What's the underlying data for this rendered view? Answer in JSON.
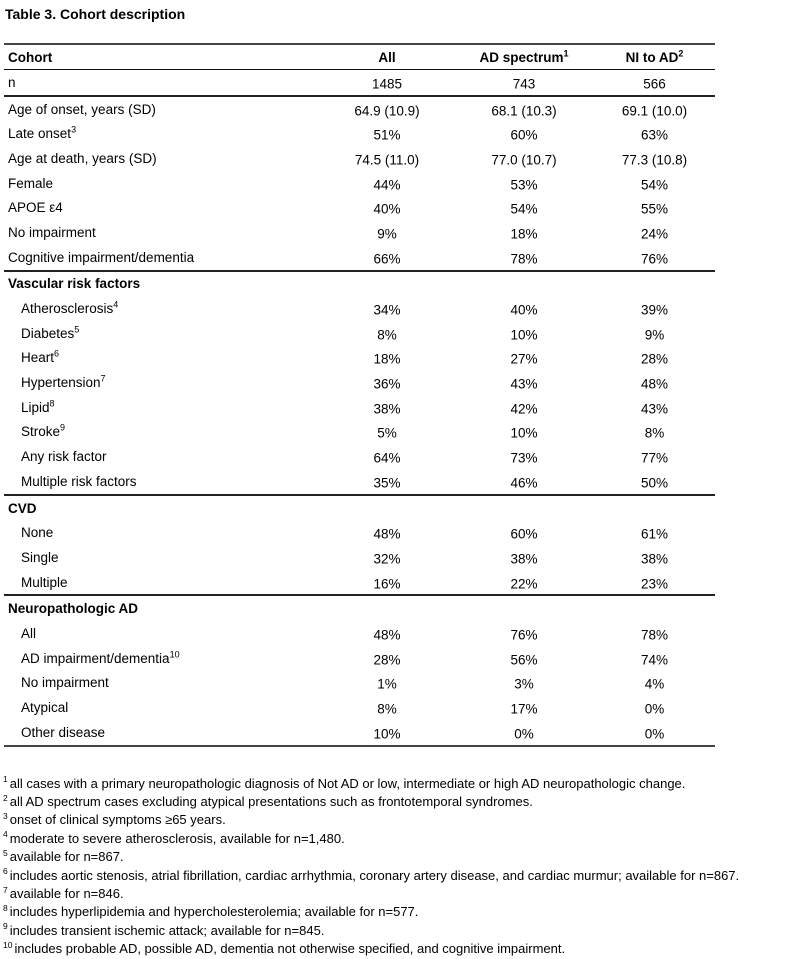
{
  "title": "Table 3. Cohort description",
  "colors": {
    "background": "#ffffff",
    "text": "#000000",
    "rule_heavy": "#454545",
    "rule_section": "#222222",
    "rule_header": "#111111"
  },
  "table": {
    "columns": [
      {
        "label": "Cohort",
        "sup": ""
      },
      {
        "label": "All",
        "sup": ""
      },
      {
        "label": "AD spectrum",
        "sup": "1"
      },
      {
        "label": "NI to AD",
        "sup": "2"
      }
    ],
    "rows": [
      {
        "label": "n",
        "sup": "",
        "indent": false,
        "section": false,
        "rule_after": true,
        "values": [
          "1485",
          "743",
          "566"
        ]
      },
      {
        "label": "Age of onset, years (SD)",
        "sup": "",
        "indent": false,
        "section": false,
        "rule_after": false,
        "values": [
          "64.9 (10.9)",
          "68.1 (10.3)",
          "69.1 (10.0)"
        ]
      },
      {
        "label": "Late onset",
        "sup": "3",
        "indent": false,
        "section": false,
        "rule_after": false,
        "values": [
          "51%",
          "60%",
          "63%"
        ]
      },
      {
        "label": "Age at death, years (SD)",
        "sup": "",
        "indent": false,
        "section": false,
        "rule_after": false,
        "values": [
          "74.5 (11.0)",
          "77.0 (10.7)",
          "77.3 (10.8)"
        ]
      },
      {
        "label": "Female",
        "sup": "",
        "indent": false,
        "section": false,
        "rule_after": false,
        "values": [
          "44%",
          "53%",
          "54%"
        ]
      },
      {
        "label": "APOE ε4",
        "sup": "",
        "indent": false,
        "section": false,
        "rule_after": false,
        "values": [
          "40%",
          "54%",
          "55%"
        ]
      },
      {
        "label": "No impairment",
        "sup": "",
        "indent": false,
        "section": false,
        "rule_after": false,
        "values": [
          "9%",
          "18%",
          "24%"
        ]
      },
      {
        "label": "Cognitive impairment/dementia",
        "sup": "",
        "indent": false,
        "section": false,
        "rule_after": true,
        "values": [
          "66%",
          "78%",
          "76%"
        ]
      },
      {
        "label": "Vascular risk factors",
        "sup": "",
        "indent": false,
        "section": true,
        "rule_after": false,
        "values": [
          "",
          "",
          ""
        ]
      },
      {
        "label": "Atherosclerosis",
        "sup": "4",
        "indent": true,
        "section": false,
        "rule_after": false,
        "values": [
          "34%",
          "40%",
          "39%"
        ]
      },
      {
        "label": "Diabetes",
        "sup": "5",
        "indent": true,
        "section": false,
        "rule_after": false,
        "values": [
          "8%",
          "10%",
          "9%"
        ]
      },
      {
        "label": "Heart",
        "sup": "6",
        "indent": true,
        "section": false,
        "rule_after": false,
        "values": [
          "18%",
          "27%",
          "28%"
        ]
      },
      {
        "label": "Hypertension",
        "sup": "7",
        "indent": true,
        "section": false,
        "rule_after": false,
        "values": [
          "36%",
          "43%",
          "48%"
        ]
      },
      {
        "label": "Lipid",
        "sup": "8",
        "indent": true,
        "section": false,
        "rule_after": false,
        "values": [
          "38%",
          "42%",
          "43%"
        ]
      },
      {
        "label": "Stroke",
        "sup": "9",
        "indent": true,
        "section": false,
        "rule_after": false,
        "values": [
          "5%",
          "10%",
          "8%"
        ]
      },
      {
        "label": "Any risk factor",
        "sup": "",
        "indent": true,
        "section": false,
        "rule_after": false,
        "values": [
          "64%",
          "73%",
          "77%"
        ]
      },
      {
        "label": "Multiple risk factors",
        "sup": "",
        "indent": true,
        "section": false,
        "rule_after": true,
        "values": [
          "35%",
          "46%",
          "50%"
        ]
      },
      {
        "label": "CVD",
        "sup": "",
        "indent": false,
        "section": true,
        "rule_after": false,
        "values": [
          "",
          "",
          ""
        ]
      },
      {
        "label": "None",
        "sup": "",
        "indent": true,
        "section": false,
        "rule_after": false,
        "values": [
          "48%",
          "60%",
          "61%"
        ]
      },
      {
        "label": "Single",
        "sup": "",
        "indent": true,
        "section": false,
        "rule_after": false,
        "values": [
          "32%",
          "38%",
          "38%"
        ]
      },
      {
        "label": "Multiple",
        "sup": "",
        "indent": true,
        "section": false,
        "rule_after": true,
        "values": [
          "16%",
          "22%",
          "23%"
        ]
      },
      {
        "label": "Neuropathologic AD",
        "sup": "",
        "indent": false,
        "section": true,
        "rule_after": false,
        "values": [
          "",
          "",
          ""
        ]
      },
      {
        "label": "All",
        "sup": "",
        "indent": true,
        "section": false,
        "rule_after": false,
        "values": [
          "48%",
          "76%",
          "78%"
        ]
      },
      {
        "label": "AD impairment/dementia",
        "sup": "10",
        "indent": true,
        "section": false,
        "rule_after": false,
        "values": [
          "28%",
          "56%",
          "74%"
        ]
      },
      {
        "label": "No impairment",
        "sup": "",
        "indent": true,
        "section": false,
        "rule_after": false,
        "values": [
          "1%",
          "3%",
          "4%"
        ]
      },
      {
        "label": "Atypical",
        "sup": "",
        "indent": true,
        "section": false,
        "rule_after": false,
        "values": [
          "8%",
          "17%",
          "0%"
        ]
      },
      {
        "label": "Other disease",
        "sup": "",
        "indent": true,
        "section": false,
        "rule_after": false,
        "values": [
          "10%",
          "0%",
          "0%"
        ]
      }
    ]
  },
  "footnotes": [
    {
      "mark": "1",
      "text": "all cases with a primary neuropathologic diagnosis of Not AD or low, intermediate or high AD neuropathologic change."
    },
    {
      "mark": "2",
      "text": "all AD spectrum cases excluding atypical presentations such as frontotemporal syndromes."
    },
    {
      "mark": "3",
      "text": "onset of clinical symptoms ≥65 years."
    },
    {
      "mark": "4",
      "text": "moderate to severe atherosclerosis, available for n=1,480."
    },
    {
      "mark": "5",
      "text": "available for n=867."
    },
    {
      "mark": "6",
      "text": "includes aortic stenosis, atrial fibrillation, cardiac arrhythmia, coronary artery disease, and cardiac murmur; available for n=867."
    },
    {
      "mark": "7",
      "text": "available for n=846."
    },
    {
      "mark": "8",
      "text": "includes hyperlipidemia and hypercholesterolemia; available for n=577."
    },
    {
      "mark": "9",
      "text": "includes transient ischemic attack; available for n=845."
    },
    {
      "mark": "10",
      "text": "includes probable AD, possible AD, dementia not otherwise specified, and cognitive impairment."
    }
  ]
}
